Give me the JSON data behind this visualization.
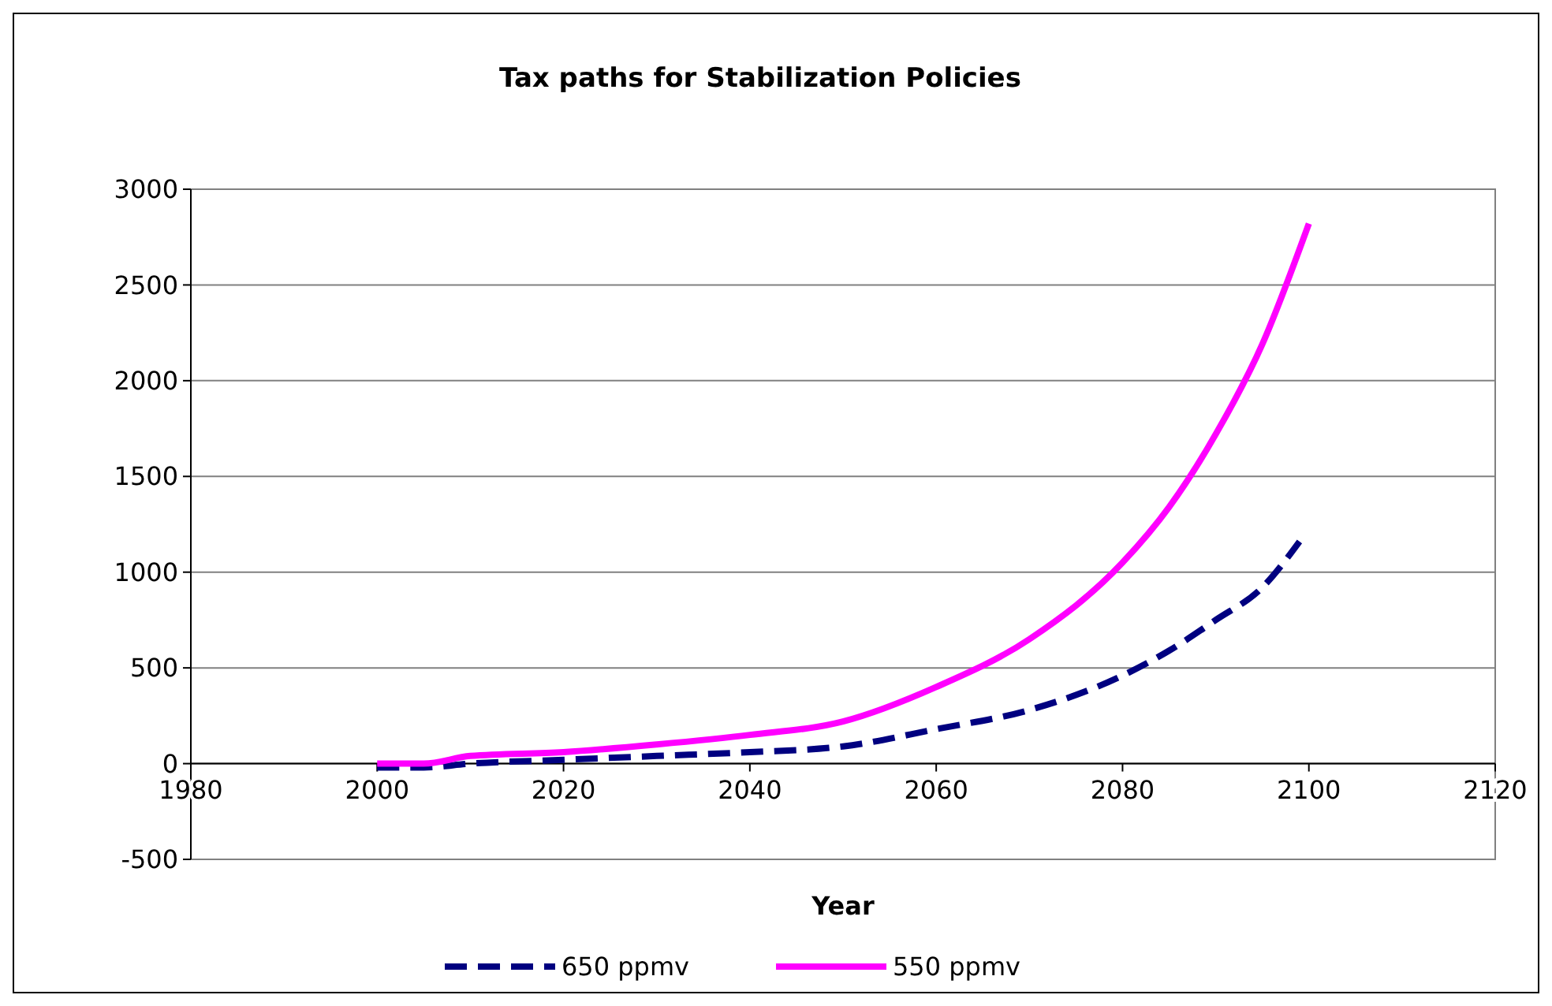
{
  "chart_data": {
    "type": "line",
    "title": "Tax paths for Stabilization Policies",
    "xlabel": "Year",
    "x": [
      2000,
      2005,
      2010,
      2020,
      2030,
      2040,
      2050,
      2060,
      2070,
      2080,
      2085,
      2090,
      2095,
      2100
    ],
    "series": [
      {
        "name": "650 ppmv",
        "color": "#000080",
        "line_style": "dashed",
        "x": [
          2000,
          2005,
          2010,
          2020,
          2030,
          2040,
          2050,
          2060,
          2070,
          2080,
          2085,
          2090,
          2095,
          2099
        ],
        "values": [
          -20,
          -20,
          0,
          20,
          40,
          60,
          90,
          180,
          280,
          460,
          590,
          750,
          920,
          1160
        ]
      },
      {
        "name": "550 ppmv",
        "color": "#ff00ff",
        "line_style": "solid",
        "values": [
          0,
          0,
          40,
          60,
          100,
          150,
          220,
          400,
          650,
          1050,
          1340,
          1720,
          2190,
          2820
        ]
      }
    ],
    "xlim": [
      1980,
      2120
    ],
    "xticks": [
      1980,
      2000,
      2020,
      2040,
      2060,
      2080,
      2100,
      2120
    ],
    "ylim": [
      -500,
      3000
    ],
    "yticks": [
      -500,
      0,
      500,
      1000,
      1500,
      2000,
      2500,
      3000
    ],
    "grid": "y",
    "legend": "bottom"
  }
}
